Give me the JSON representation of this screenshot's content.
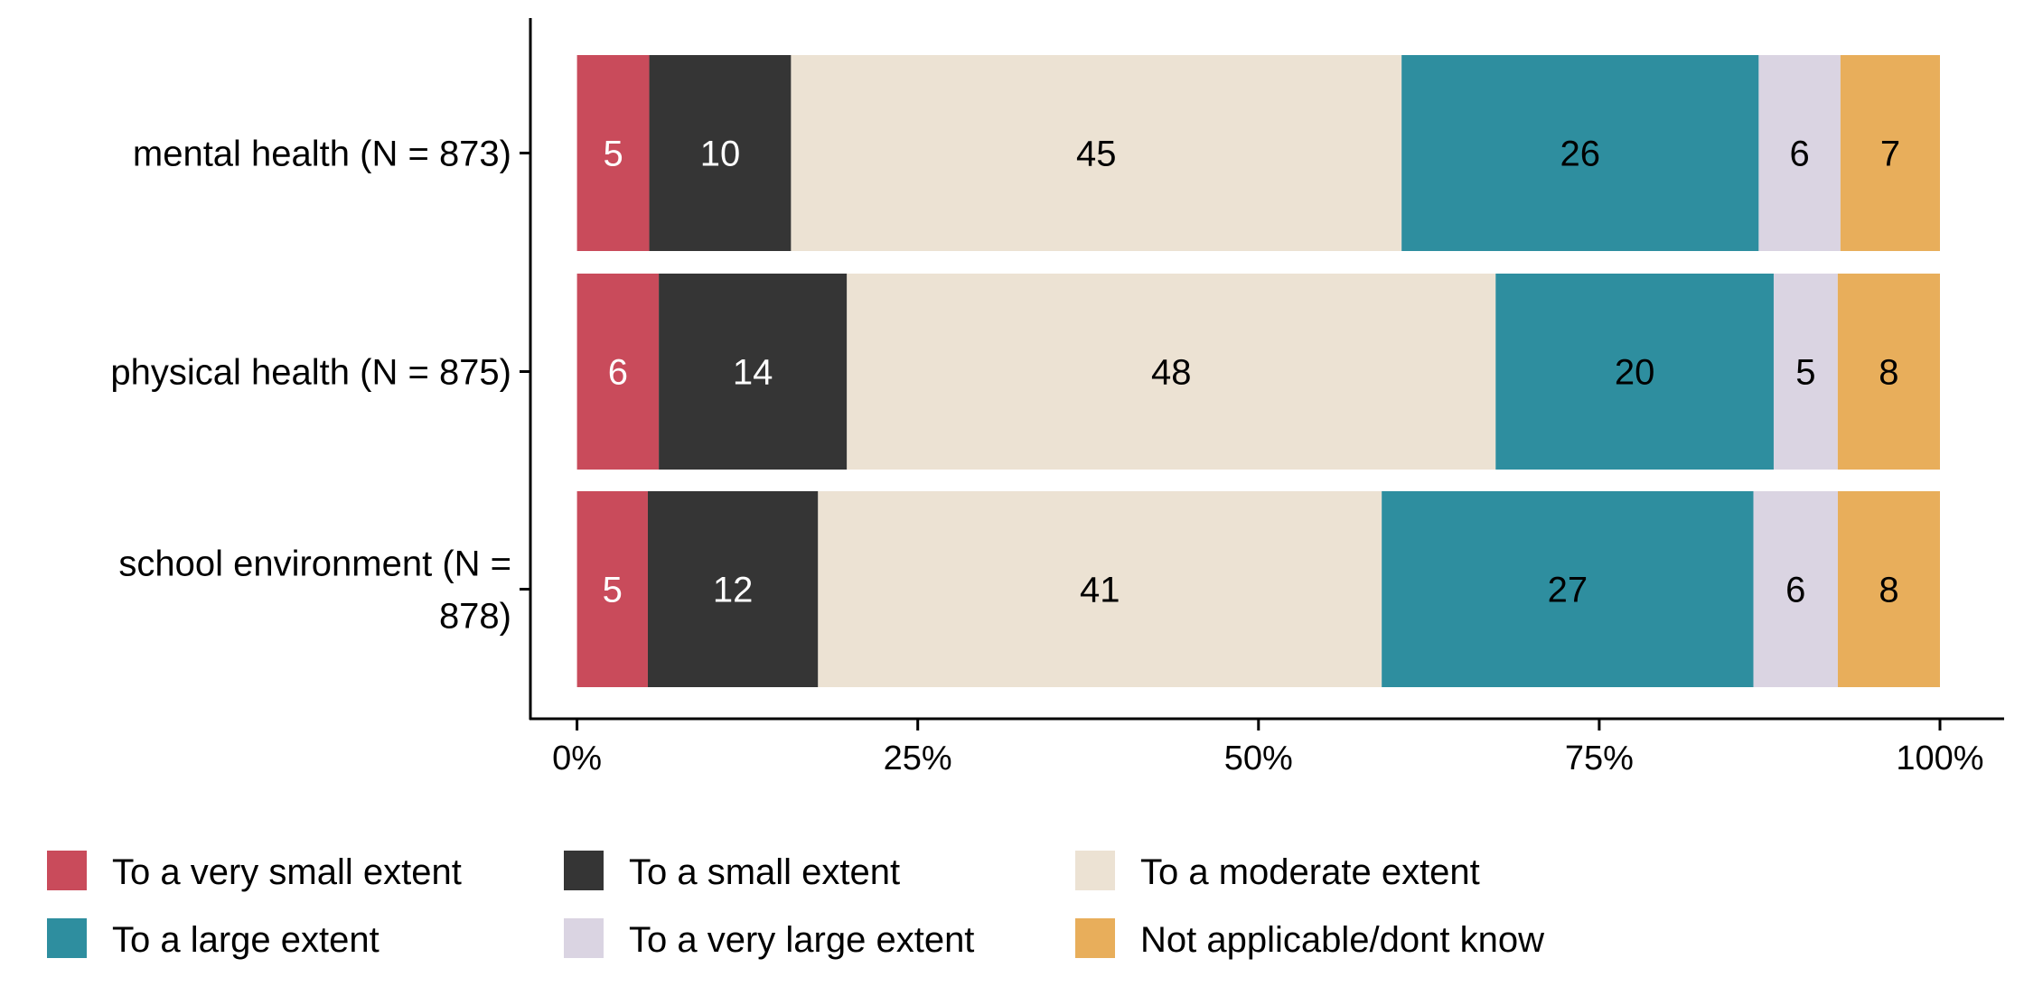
{
  "chart_data": {
    "type": "bar",
    "orientation": "horizontal",
    "stacked": true,
    "title": "",
    "xlabel": "",
    "ylabel": "",
    "xlim": [
      0,
      100
    ],
    "x_ticks": [
      "0%",
      "25%",
      "50%",
      "75%",
      "100%"
    ],
    "x_tick_values": [
      0,
      25,
      50,
      75,
      100
    ],
    "grid": false,
    "legend_position": "bottom",
    "categories": [
      {
        "label_lines": [
          "mental health (N = 873)"
        ]
      },
      {
        "label_lines": [
          "physical health (N = 875)"
        ]
      },
      {
        "label_lines": [
          "school environment (N =",
          "878)"
        ]
      }
    ],
    "series": [
      {
        "name": "To a very small extent",
        "color": "#C94B5B",
        "text_color": "#ffffff",
        "values": [
          5.3,
          6.0,
          5.2
        ],
        "labels": [
          "5",
          "6",
          "5"
        ]
      },
      {
        "name": "To a small extent",
        "color": "#353535",
        "text_color": "#ffffff",
        "values": [
          10.4,
          13.8,
          12.5
        ],
        "labels": [
          "10",
          "14",
          "12"
        ]
      },
      {
        "name": "To a moderate extent",
        "color": "#ECE2D3",
        "text_color": "#000000",
        "values": [
          44.8,
          47.6,
          41.4
        ],
        "labels": [
          "45",
          "48",
          "41"
        ]
      },
      {
        "name": "To a large extent",
        "color": "#2E8E9F",
        "text_color": "#000000",
        "values": [
          26.2,
          20.4,
          27.3
        ],
        "labels": [
          "26",
          "20",
          "27"
        ]
      },
      {
        "name": "To a very large extent",
        "color": "#DAD4E2",
        "text_color": "#000000",
        "values": [
          6.0,
          4.7,
          6.2
        ],
        "labels": [
          "6",
          "5",
          "6"
        ]
      },
      {
        "name": "Not applicable/dont know",
        "color": "#E8AE5B",
        "text_color": "#000000",
        "values": [
          7.3,
          7.5,
          7.5
        ],
        "labels": [
          "7",
          "8",
          "8"
        ]
      }
    ]
  }
}
